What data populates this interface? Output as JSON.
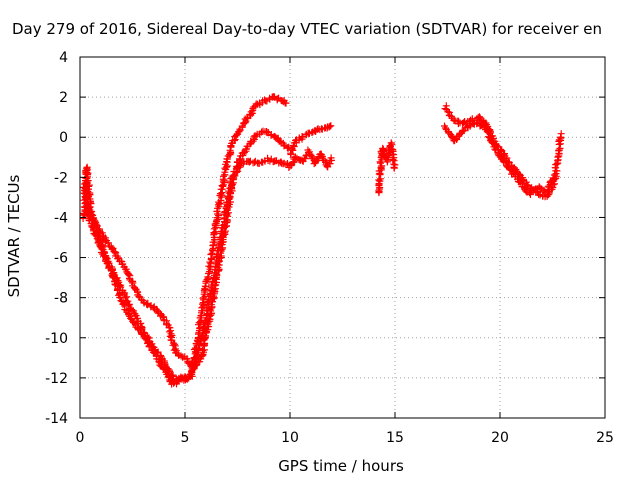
{
  "chart_data": {
    "type": "scatter",
    "title": "Day 279 of 2016, Sidereal Day-to-day VTEC variation (SDTVAR) for receiver en",
    "xlabel": "GPS time / hours",
    "ylabel": "SDTVAR / TECUs",
    "xlim": [
      0,
      25
    ],
    "ylim": [
      -14,
      4
    ],
    "x_ticks": [
      0,
      5,
      10,
      15,
      20,
      25
    ],
    "y_ticks": [
      -14,
      -12,
      -10,
      -8,
      -6,
      -4,
      -2,
      0,
      2,
      4
    ],
    "x_tick_labels": [
      "0",
      "5",
      "10",
      "15",
      "20",
      "25"
    ],
    "y_tick_labels": [
      "-14",
      "-12",
      "-10",
      "-8",
      "-6",
      "-4",
      "-2",
      "0",
      "2",
      "4"
    ],
    "grid": true,
    "marker": "+",
    "series": [
      {
        "name": "SDTVAR",
        "color": "#ff0000",
        "tracks": [
          {
            "x": [
              0.2,
              0.3,
              0.5,
              0.8,
              1.0,
              1.3,
              1.6,
              2.0,
              2.4,
              2.8,
              3.2,
              3.6,
              4.0,
              4.3,
              4.5,
              4.8,
              5.0,
              5.3,
              5.6,
              5.9,
              6.2,
              6.6,
              7.0,
              7.3,
              7.6,
              8.0,
              8.4,
              8.8,
              9.2,
              9.5,
              9.9
            ],
            "y": [
              -4.0,
              -1.5,
              -3.5,
              -4.6,
              -5.3,
              -6.2,
              -7.0,
              -8.2,
              -9.0,
              -9.6,
              -10.2,
              -10.9,
              -11.6,
              -12.2,
              -12.3,
              -12.0,
              -12.1,
              -11.8,
              -10.0,
              -8.0,
              -6.3,
              -3.5,
              -1.2,
              -0.2,
              0.4,
              1.0,
              1.6,
              1.8,
              2.0,
              1.9,
              1.6
            ]
          },
          {
            "x": [
              0.2,
              0.5,
              0.8,
              1.1,
              1.5,
              1.9,
              2.3,
              2.7,
              3.1,
              3.5,
              3.9,
              4.3,
              4.6,
              5.0,
              5.3,
              5.6,
              6.0,
              6.4,
              6.8,
              7.2,
              7.6,
              8.0,
              8.4,
              8.8,
              9.2,
              9.6,
              10.0
            ],
            "y": [
              -2.5,
              -4.3,
              -5.0,
              -5.8,
              -6.6,
              -7.4,
              -8.3,
              -9.0,
              -9.8,
              -10.5,
              -11.0,
              -11.8,
              -12.1,
              -12.0,
              -11.9,
              -10.8,
              -9.0,
              -6.8,
              -4.5,
              -2.2,
              -1.1,
              -0.5,
              0.1,
              0.3,
              0.1,
              -0.3,
              -0.6
            ]
          },
          {
            "x": [
              0.3,
              0.6,
              0.9,
              1.2,
              1.5,
              1.8,
              2.2,
              2.6,
              3.0,
              3.4,
              3.8,
              4.2,
              4.6,
              5.0,
              5.4,
              5.8,
              6.2,
              6.6,
              7.0,
              7.3,
              7.7,
              8.1,
              8.5,
              8.9,
              9.3,
              9.7,
              10.1
            ],
            "y": [
              -3.5,
              -4.0,
              -4.6,
              -5.1,
              -5.5,
              -6.0,
              -6.6,
              -7.5,
              -8.2,
              -8.4,
              -8.8,
              -9.4,
              -10.8,
              -11.0,
              -11.5,
              -11.0,
              -8.8,
              -6.5,
              -4.0,
              -2.0,
              -1.3,
              -1.2,
              -1.3,
              -1.1,
              -1.2,
              -1.3,
              -1.4
            ]
          },
          {
            "x": [
              10.0,
              10.3,
              10.6,
              10.9,
              11.2,
              11.5,
              11.8,
              12.0
            ],
            "y": [
              -0.8,
              -0.2,
              0.0,
              0.2,
              0.3,
              0.4,
              0.5,
              0.6
            ]
          },
          {
            "x": [
              10.0,
              10.3,
              10.6,
              10.9,
              11.2,
              11.5,
              11.8,
              12.0
            ],
            "y": [
              -1.5,
              -1.0,
              -1.2,
              -0.7,
              -1.3,
              -0.8,
              -1.5,
              -1.0
            ]
          },
          {
            "x": [
              14.2,
              14.4,
              14.6,
              14.8,
              15.0
            ],
            "y": [
              -2.8,
              -0.5,
              -1.2,
              -0.3,
              -1.6
            ]
          },
          {
            "x": [
              17.4,
              17.8,
              18.2,
              18.6,
              19.0,
              19.4,
              19.8,
              20.2,
              20.6,
              21.0,
              21.4,
              21.8,
              22.2,
              22.6,
              22.9
            ],
            "y": [
              1.5,
              0.8,
              0.7,
              0.8,
              1.0,
              0.6,
              -0.3,
              -0.9,
              -1.5,
              -2.0,
              -2.5,
              -2.8,
              -3.0,
              -2.2,
              0.2
            ]
          },
          {
            "x": [
              17.4,
              17.8,
              18.2,
              18.6,
              19.0,
              19.4,
              19.8,
              20.2,
              20.6,
              21.0,
              21.4,
              21.8,
              22.2,
              22.6
            ],
            "y": [
              0.5,
              -0.2,
              0.3,
              0.6,
              0.7,
              0.3,
              -0.6,
              -1.2,
              -1.8,
              -2.3,
              -2.8,
              -2.5,
              -2.7,
              -2.0
            ]
          }
        ]
      }
    ]
  }
}
